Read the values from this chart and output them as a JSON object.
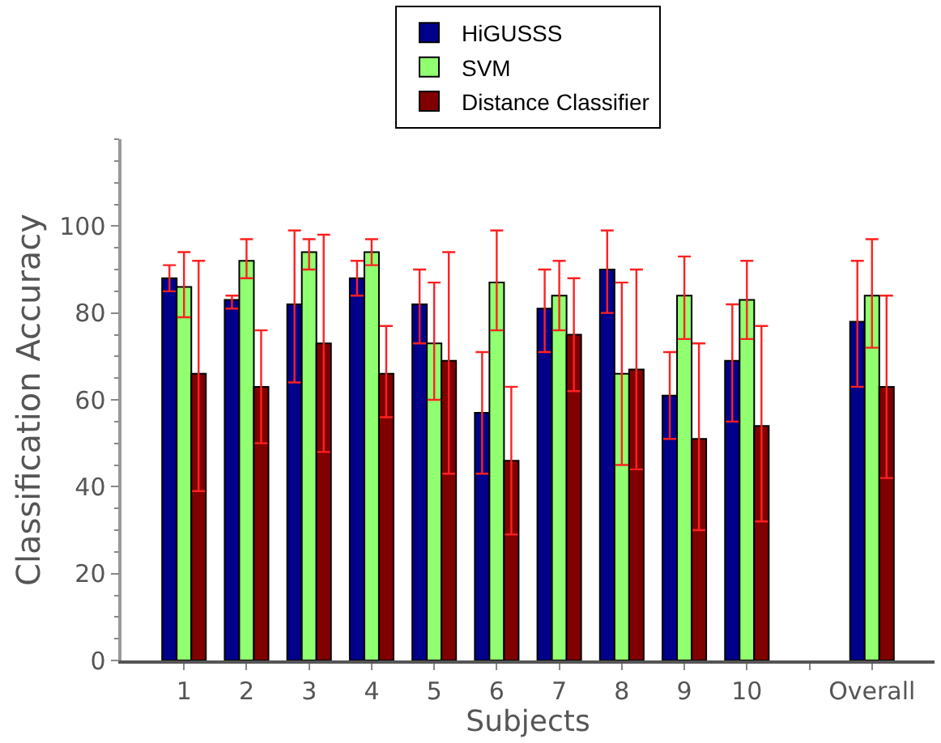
{
  "chart_data": {
    "type": "bar",
    "xlabel": "Subjects",
    "ylabel": "Classification Accuracy",
    "categories": [
      "1",
      "2",
      "3",
      "4",
      "5",
      "6",
      "7",
      "8",
      "9",
      "10",
      null,
      "Overall"
    ],
    "series": [
      {
        "name": "HiGUSSS",
        "color": "#00008b",
        "values": [
          88,
          83,
          82,
          88,
          82,
          57,
          81,
          90,
          61,
          69,
          null,
          78
        ],
        "errors": [
          [
            85,
            91
          ],
          [
            81,
            84
          ],
          [
            64,
            99
          ],
          [
            84,
            92
          ],
          [
            73,
            90
          ],
          [
            43,
            71
          ],
          [
            71,
            90
          ],
          [
            80,
            99
          ],
          [
            51,
            71
          ],
          [
            55,
            82
          ],
          null,
          [
            63,
            92
          ]
        ]
      },
      {
        "name": "SVM",
        "color": "#90ff70",
        "values": [
          86,
          92,
          94,
          94,
          73,
          87,
          84,
          66,
          84,
          83,
          null,
          84
        ],
        "errors": [
          [
            79,
            94
          ],
          [
            88,
            97
          ],
          [
            90,
            97
          ],
          [
            91,
            97
          ],
          [
            60,
            87
          ],
          [
            76,
            99
          ],
          [
            76,
            92
          ],
          [
            45,
            87
          ],
          [
            74,
            93
          ],
          [
            74,
            92
          ],
          null,
          [
            72,
            97
          ]
        ]
      },
      {
        "name": "Distance Classifier",
        "color": "#800000",
        "values": [
          66,
          63,
          73,
          66,
          69,
          46,
          75,
          67,
          51,
          54,
          null,
          63
        ],
        "errors": [
          [
            39,
            92
          ],
          [
            50,
            76
          ],
          [
            48,
            98
          ],
          [
            56,
            77
          ],
          [
            43,
            94
          ],
          [
            29,
            63
          ],
          [
            62,
            88
          ],
          [
            44,
            90
          ],
          [
            30,
            73
          ],
          [
            32,
            77
          ],
          null,
          [
            42,
            84
          ]
        ]
      }
    ],
    "ylim": [
      0,
      120
    ],
    "yticks": [
      0,
      20,
      40,
      60,
      80,
      100
    ],
    "grid": false,
    "legend": "top"
  }
}
